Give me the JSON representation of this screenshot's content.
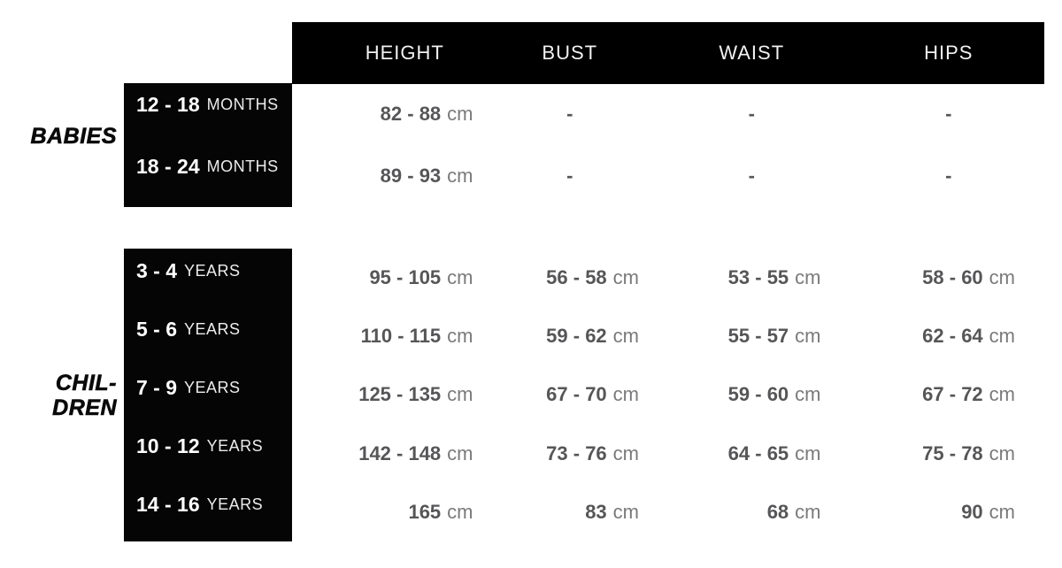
{
  "colors": {
    "background": "#ffffff",
    "bar_black": "#000000",
    "header_text": "#f2f2f2",
    "age_number_text": "#ffffff",
    "age_unit_text": "#ececec",
    "value_number_text": "#565658",
    "value_unit_text": "#7a7a7c",
    "side_label_text": "#0a0a0a"
  },
  "chart_data": {
    "type": "table",
    "columns": [
      "HEIGHT",
      "BUST",
      "WAIST",
      "HIPS"
    ],
    "groups": [
      {
        "label_lines": [
          "BABIES"
        ],
        "rows": [
          {
            "age": "12 - 18",
            "age_unit": "MONTHS",
            "cells": [
              {
                "v": "82 - 88",
                "u": "cm"
              },
              {
                "v": "-",
                "u": ""
              },
              {
                "v": "-",
                "u": ""
              },
              {
                "v": "-",
                "u": ""
              }
            ]
          },
          {
            "age": "18 - 24",
            "age_unit": "MONTHS",
            "cells": [
              {
                "v": "89 - 93",
                "u": "cm"
              },
              {
                "v": "-",
                "u": ""
              },
              {
                "v": "-",
                "u": ""
              },
              {
                "v": "-",
                "u": ""
              }
            ]
          }
        ]
      },
      {
        "label_lines": [
          "CHIL-",
          "DREN"
        ],
        "rows": [
          {
            "age": "3 - 4",
            "age_unit": "YEARS",
            "cells": [
              {
                "v": "95 - 105",
                "u": "cm"
              },
              {
                "v": "56 - 58",
                "u": "cm"
              },
              {
                "v": "53 - 55",
                "u": "cm"
              },
              {
                "v": "58 - 60",
                "u": "cm"
              }
            ]
          },
          {
            "age": "5 - 6",
            "age_unit": "YEARS",
            "cells": [
              {
                "v": "110 - 115",
                "u": "cm"
              },
              {
                "v": "59 - 62",
                "u": "cm"
              },
              {
                "v": "55 - 57",
                "u": "cm"
              },
              {
                "v": "62 - 64",
                "u": "cm"
              }
            ]
          },
          {
            "age": "7 - 9",
            "age_unit": "YEARS",
            "cells": [
              {
                "v": "125 - 135",
                "u": "cm"
              },
              {
                "v": "67 - 70",
                "u": "cm"
              },
              {
                "v": "59 - 60",
                "u": "cm"
              },
              {
                "v": "67 - 72",
                "u": "cm"
              }
            ]
          },
          {
            "age": "10 - 12",
            "age_unit": "YEARS",
            "cells": [
              {
                "v": "142 - 148",
                "u": "cm"
              },
              {
                "v": "73 - 76",
                "u": "cm"
              },
              {
                "v": "64 - 65",
                "u": "cm"
              },
              {
                "v": "75 - 78",
                "u": "cm"
              }
            ]
          },
          {
            "age": "14 - 16",
            "age_unit": "YEARS",
            "cells": [
              {
                "v": "165",
                "u": "cm"
              },
              {
                "v": "83",
                "u": "cm"
              },
              {
                "v": "68",
                "u": "cm"
              },
              {
                "v": "90",
                "u": "cm"
              }
            ]
          }
        ]
      }
    ]
  }
}
